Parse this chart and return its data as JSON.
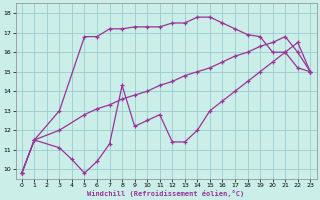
{
  "xlabel": "Windchill (Refroidissement éolien,°C)",
  "bg_color": "#cceee8",
  "line_color": "#993399",
  "grid_color": "#99cccc",
  "xlim": [
    -0.5,
    23.5
  ],
  "ylim": [
    9.5,
    18.5
  ],
  "xticks": [
    0,
    1,
    2,
    3,
    4,
    5,
    6,
    7,
    8,
    9,
    10,
    11,
    12,
    13,
    14,
    15,
    16,
    17,
    18,
    19,
    20,
    21,
    22,
    23
  ],
  "yticks": [
    10,
    11,
    12,
    13,
    14,
    15,
    16,
    17,
    18
  ],
  "series_top_x": [
    0,
    1,
    3,
    5,
    6,
    7,
    8,
    9,
    10,
    11,
    12,
    13,
    14,
    15,
    16,
    17,
    18,
    19,
    20,
    21,
    22,
    23
  ],
  "series_top_y": [
    9.8,
    11.5,
    13.0,
    16.8,
    16.8,
    17.2,
    17.2,
    17.3,
    17.3,
    17.3,
    17.5,
    17.5,
    17.8,
    17.8,
    17.5,
    17.2,
    16.9,
    16.8,
    16.0,
    16.0,
    15.2,
    15.0
  ],
  "series_mid_x": [
    0,
    1,
    3,
    5,
    6,
    7,
    8,
    9,
    10,
    11,
    12,
    13,
    14,
    15,
    16,
    17,
    18,
    19,
    20,
    21,
    22,
    23
  ],
  "series_mid_y": [
    9.8,
    11.5,
    12.0,
    12.8,
    13.1,
    13.3,
    13.6,
    13.8,
    14.0,
    14.3,
    14.5,
    14.8,
    15.0,
    15.2,
    15.5,
    15.8,
    16.0,
    16.3,
    16.5,
    16.8,
    16.0,
    15.0
  ],
  "series_bot_x": [
    0,
    1,
    3,
    4,
    5,
    6,
    7,
    8,
    9,
    10,
    11,
    12,
    13,
    14,
    15,
    16,
    17,
    18,
    19,
    20,
    21,
    22,
    23
  ],
  "series_bot_y": [
    9.8,
    11.5,
    11.1,
    10.5,
    9.8,
    10.4,
    11.3,
    14.3,
    12.2,
    12.5,
    12.8,
    11.4,
    11.4,
    12.0,
    13.0,
    13.5,
    14.0,
    14.5,
    15.0,
    15.5,
    16.0,
    16.5,
    15.0
  ]
}
